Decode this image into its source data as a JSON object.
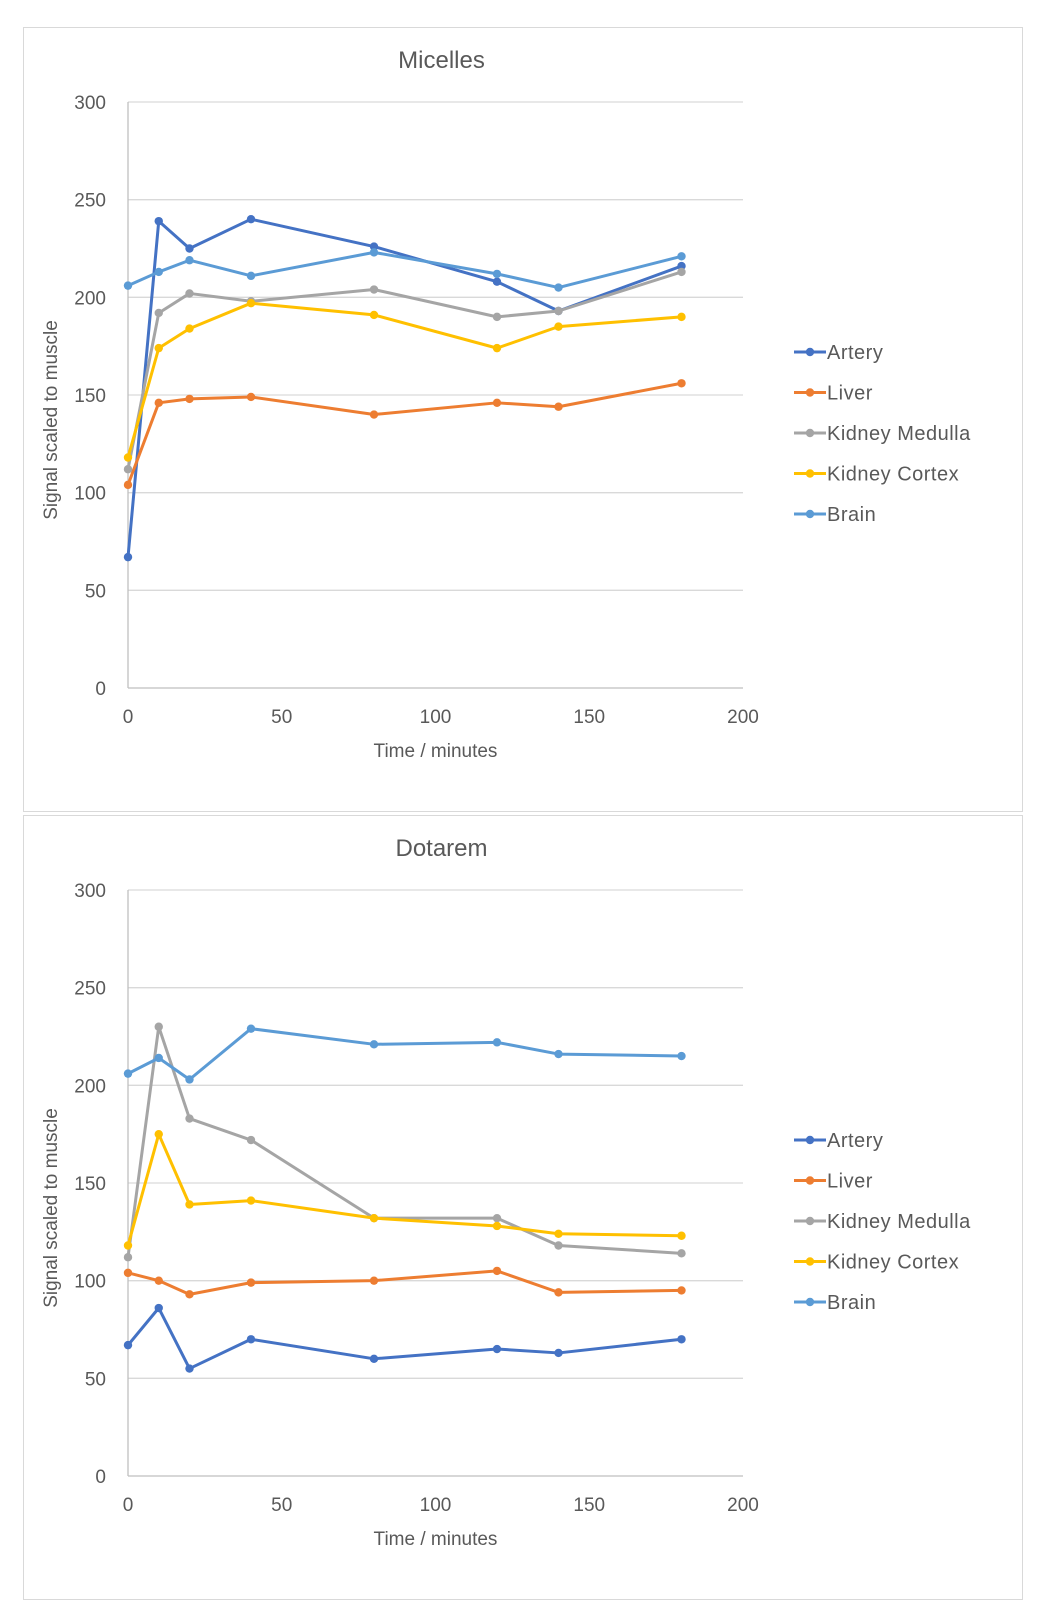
{
  "chart_data": [
    {
      "type": "line",
      "title": "Micelles",
      "xlabel": "Time / minutes",
      "ylabel": "Signal scaled to muscle",
      "xlim": [
        0,
        200
      ],
      "ylim": [
        0,
        300
      ],
      "xticks": [
        "0",
        "50",
        "100",
        "150",
        "200"
      ],
      "yticks": [
        "0",
        "50",
        "100",
        "150",
        "200",
        "250",
        "300"
      ],
      "grid": "horizontal",
      "legend_position": "right",
      "x": [
        0,
        10,
        20,
        40,
        80,
        120,
        140,
        180
      ],
      "series": [
        {
          "name": "Artery",
          "color": "#4472C4",
          "values": [
            67,
            239,
            225,
            240,
            226,
            208,
            193,
            216
          ]
        },
        {
          "name": "Liver",
          "color": "#ED7D31",
          "values": [
            104,
            146,
            148,
            149,
            140,
            146,
            144,
            156
          ]
        },
        {
          "name": "Kidney Medulla",
          "color": "#A5A5A5",
          "values": [
            112,
            192,
            202,
            198,
            204,
            190,
            193,
            213
          ]
        },
        {
          "name": "Kidney Cortex",
          "color": "#FFC000",
          "values": [
            118,
            174,
            184,
            197,
            191,
            174,
            185,
            190
          ]
        },
        {
          "name": "Brain",
          "color": "#5B9BD5",
          "values": [
            206,
            213,
            219,
            211,
            223,
            212,
            205,
            221
          ]
        }
      ]
    },
    {
      "type": "line",
      "title": "Dotarem",
      "xlabel": "Time / minutes",
      "ylabel": "Signal scaled to muscle",
      "xlim": [
        0,
        200
      ],
      "ylim": [
        0,
        300
      ],
      "xticks": [
        "0",
        "50",
        "100",
        "150",
        "200"
      ],
      "yticks": [
        "0",
        "50",
        "100",
        "150",
        "200",
        "250",
        "300"
      ],
      "grid": "horizontal",
      "legend_position": "right",
      "x": [
        0,
        10,
        20,
        40,
        80,
        120,
        140,
        180
      ],
      "series": [
        {
          "name": "Artery",
          "color": "#4472C4",
          "values": [
            67,
            86,
            55,
            70,
            60,
            65,
            63,
            70
          ]
        },
        {
          "name": "Liver",
          "color": "#ED7D31",
          "values": [
            104,
            100,
            93,
            99,
            100,
            105,
            94,
            95
          ]
        },
        {
          "name": "Kidney Medulla",
          "color": "#A5A5A5",
          "values": [
            112,
            230,
            183,
            172,
            132,
            132,
            118,
            114
          ]
        },
        {
          "name": "Kidney Cortex",
          "color": "#FFC000",
          "values": [
            118,
            175,
            139,
            141,
            132,
            128,
            124,
            123
          ]
        },
        {
          "name": "Brain",
          "color": "#5B9BD5",
          "values": [
            206,
            214,
            203,
            229,
            221,
            222,
            216,
            215
          ]
        }
      ]
    }
  ]
}
